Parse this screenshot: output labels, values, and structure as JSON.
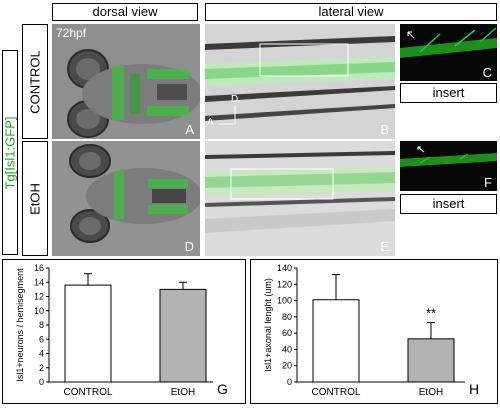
{
  "headers": {
    "dorsal": "dorsal view",
    "lateral": "lateral view"
  },
  "row_labels": {
    "tg": "Tg[Isl1:GFP]",
    "control": "CONTROL",
    "etoh": "EtOH"
  },
  "stage_label": "72hpf",
  "panel_letters": {
    "A": "A",
    "B": "B",
    "C": "C",
    "D": "D",
    "E": "E",
    "F": "F",
    "G": "G",
    "H": "H"
  },
  "axis_markers": {
    "a": "A",
    "d": "D"
  },
  "insert_label": "insert",
  "colors": {
    "gfp_green": "#1fa51f",
    "control_bar": "#ffffff",
    "etoh_bar": "#b3b3b3"
  },
  "chart_data": [
    {
      "type": "bar",
      "panel": "G",
      "categories": [
        "CONTROL",
        "EtOH"
      ],
      "values": [
        13.6,
        13.0
      ],
      "errors": [
        1.6,
        1.0
      ],
      "ylabel": "Isl1+neurons / hemisegment",
      "xlabel": "",
      "ylim": [
        0,
        16
      ],
      "yticks": [
        0,
        2,
        4,
        6,
        8,
        10,
        12,
        14,
        16
      ],
      "bar_colors": [
        "#ffffff",
        "#b3b3b3"
      ],
      "annotations": []
    },
    {
      "type": "bar",
      "panel": "H",
      "categories": [
        "CONTROL",
        "EtOH"
      ],
      "values": [
        101,
        53
      ],
      "errors": [
        31,
        20
      ],
      "ylabel": "Isl1+axonal lenght (um)",
      "xlabel": "",
      "ylim": [
        0,
        140
      ],
      "yticks": [
        0,
        20,
        40,
        60,
        80,
        100,
        120,
        140
      ],
      "bar_colors": [
        "#ffffff",
        "#b3b3b3"
      ],
      "annotations": [
        {
          "category": "EtOH",
          "text": "**"
        }
      ]
    }
  ]
}
